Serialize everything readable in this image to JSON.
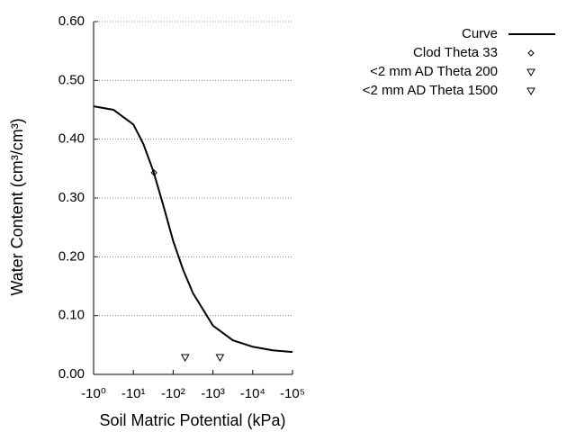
{
  "chart_data": {
    "type": "line",
    "xlabel": "Soil Matric Potential (kPa)",
    "ylabel": "Water Content (cm³/cm³)",
    "x_scale": "log",
    "xlim": [
      -1,
      -100000
    ],
    "xticks": [
      {
        "value": -1,
        "label": "-10⁰"
      },
      {
        "value": -10,
        "label": "-10¹"
      },
      {
        "value": -100,
        "label": "-10²"
      },
      {
        "value": -1000,
        "label": "-10³"
      },
      {
        "value": -10000,
        "label": "-10⁴"
      },
      {
        "value": -100000,
        "label": "-10⁵"
      }
    ],
    "ylim": [
      0,
      0.6
    ],
    "yticks": [
      {
        "value": 0,
        "label": "0.00"
      },
      {
        "value": 0.1,
        "label": "0.10"
      },
      {
        "value": 0.2,
        "label": "0.20"
      },
      {
        "value": 0.3,
        "label": "0.30"
      },
      {
        "value": 0.4,
        "label": "0.40"
      },
      {
        "value": 0.5,
        "label": "0.50"
      },
      {
        "value": 0.6,
        "label": "0.60"
      }
    ],
    "grid": true,
    "legend": "upper-right",
    "series": [
      {
        "name": "Curve",
        "color": "#000000",
        "marker": "line",
        "x": [
          -1,
          -3.16,
          -10,
          -17.8,
          -31.6,
          -56.2,
          -100,
          -178,
          -316,
          -1000,
          -3160,
          -10000,
          -31600,
          -100000
        ],
        "values": [
          0.456,
          0.45,
          0.425,
          0.392,
          0.346,
          0.288,
          0.227,
          0.178,
          0.138,
          0.083,
          0.058,
          0.047,
          0.041,
          0.038
        ]
      },
      {
        "name": "Clod Theta 33",
        "color": "#000000",
        "marker": "diamond",
        "x": [
          -33
        ],
        "values": [
          0.343
        ]
      },
      {
        "name": "<2 mm AD Theta 200",
        "color": "#000000",
        "marker": "triangle-down",
        "x": [
          -200
        ],
        "values": [
          0.029
        ]
      },
      {
        "name": "<2 mm AD Theta 1500",
        "color": "#000000",
        "marker": "triangle-down",
        "x": [
          -1500
        ],
        "values": [
          0.029
        ]
      }
    ]
  }
}
